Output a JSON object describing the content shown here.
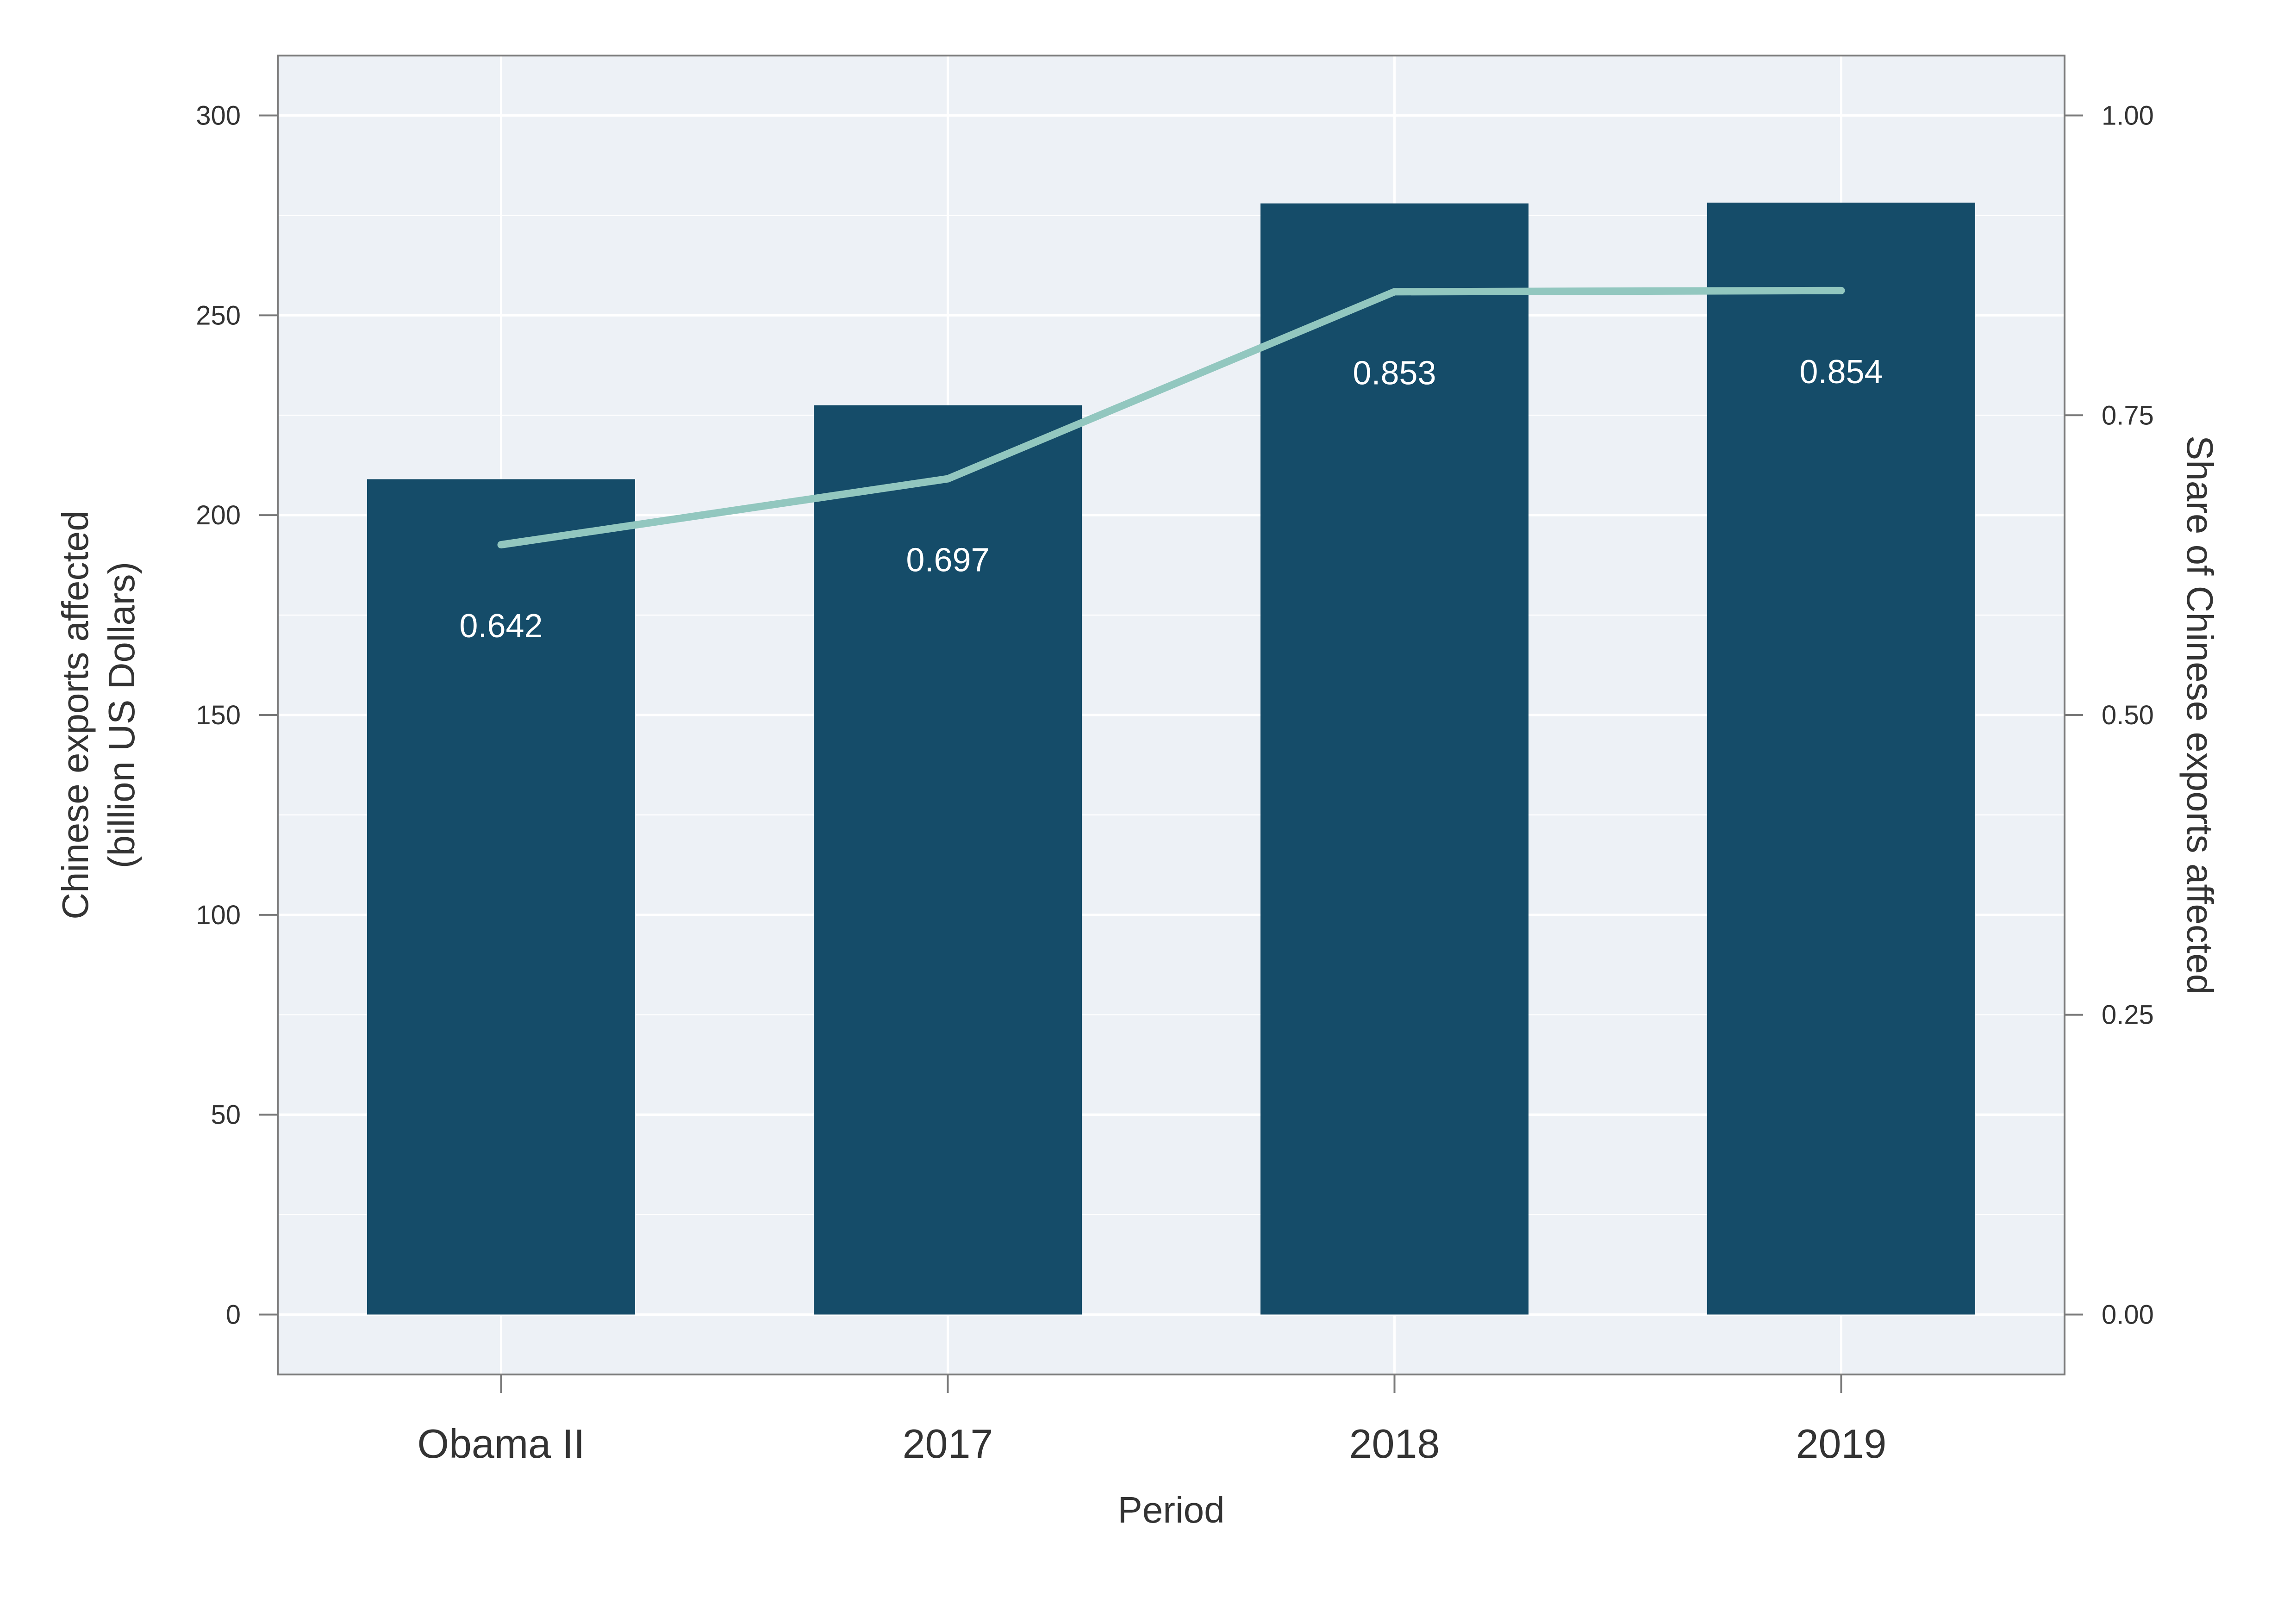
{
  "chart_data": {
    "type": "bar",
    "categories": [
      "Obama II",
      "2017",
      "2018",
      "2019"
    ],
    "series": [
      {
        "type": "bar",
        "axis": "left",
        "values": [
          209,
          227.5,
          278,
          278.2
        ],
        "color": "#154c69"
      },
      {
        "type": "line",
        "axis": "right",
        "values": [
          0.642,
          0.697,
          0.853,
          0.854
        ],
        "color": "#92c7bf",
        "labels": [
          "0.642",
          "0.697",
          "0.853",
          "0.854"
        ]
      }
    ],
    "xlabel": "Period",
    "ylabel": "Chinese exports affected\n(billion US Dollars)",
    "ylabel_lines": [
      "Chinese exports affected",
      "(billion US Dollars)"
    ],
    "y2label": "Share of Chinese exports affected",
    "ylim": [
      -15,
      315
    ],
    "y2lim": [
      -0.05,
      1.05
    ],
    "yticks": [
      0,
      50,
      100,
      150,
      200,
      250,
      300
    ],
    "ytick_labels": [
      "0",
      "50",
      "100",
      "150",
      "200",
      "250",
      "300"
    ],
    "y2ticks": [
      0,
      0.25,
      0.5,
      0.75,
      1.0
    ],
    "y2tick_labels": [
      "0.00",
      "0.25",
      "0.50",
      "0.75",
      "1.00"
    ],
    "grid": true,
    "colors": {
      "panel_background": "#edf1f6",
      "grid": "#ffffff",
      "frame": "#7a7a7a"
    }
  }
}
